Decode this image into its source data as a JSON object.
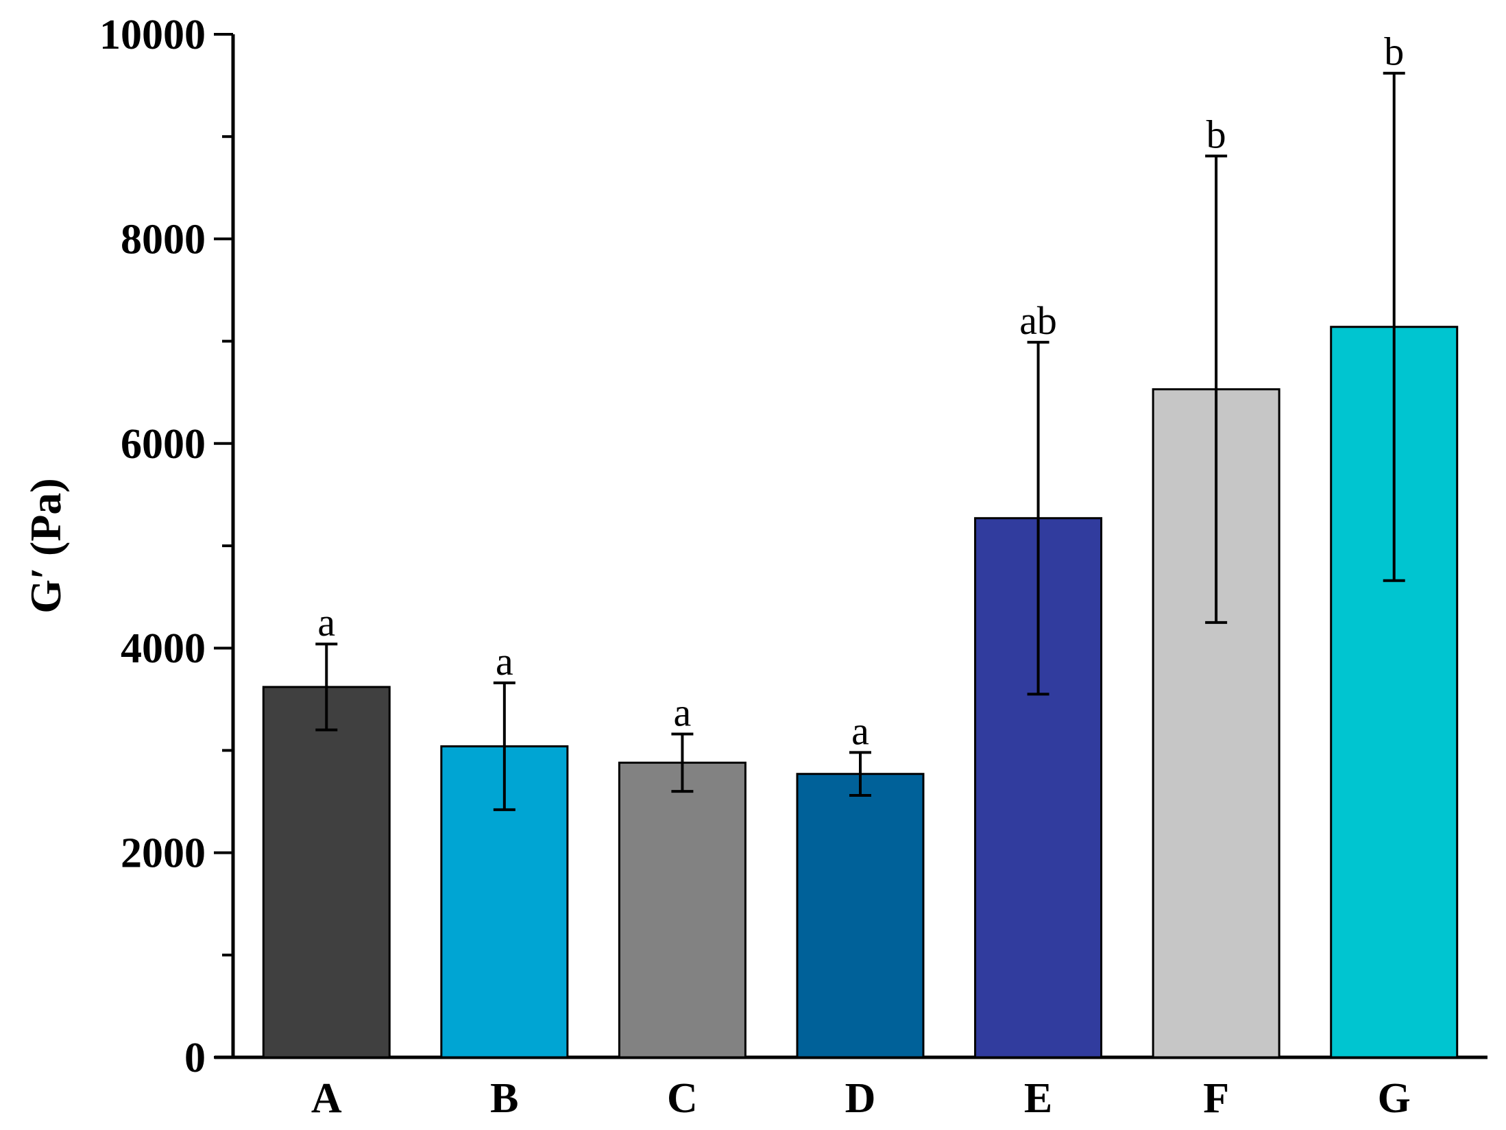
{
  "chart_data": {
    "type": "bar",
    "title": "",
    "xlabel": "",
    "ylabel": "G′ (Pa)",
    "ylim": [
      0,
      10000
    ],
    "yticks": [
      0,
      2000,
      4000,
      6000,
      8000,
      10000
    ],
    "y_minor_step": 1000,
    "grid": false,
    "categories": [
      "A",
      "B",
      "C",
      "D",
      "E",
      "F",
      "G"
    ],
    "values": [
      3620,
      3040,
      2880,
      2770,
      5270,
      6530,
      7140
    ],
    "errors": [
      420,
      620,
      280,
      210,
      1720,
      2280,
      2480
    ],
    "significance": [
      "a",
      "a",
      "a",
      "a",
      "ab",
      "b",
      "b"
    ],
    "colors": [
      "#404040",
      "#00A5D3",
      "#828282",
      "#006199",
      "#313C9E",
      "#C6C6C6",
      "#00C5D0"
    ]
  }
}
